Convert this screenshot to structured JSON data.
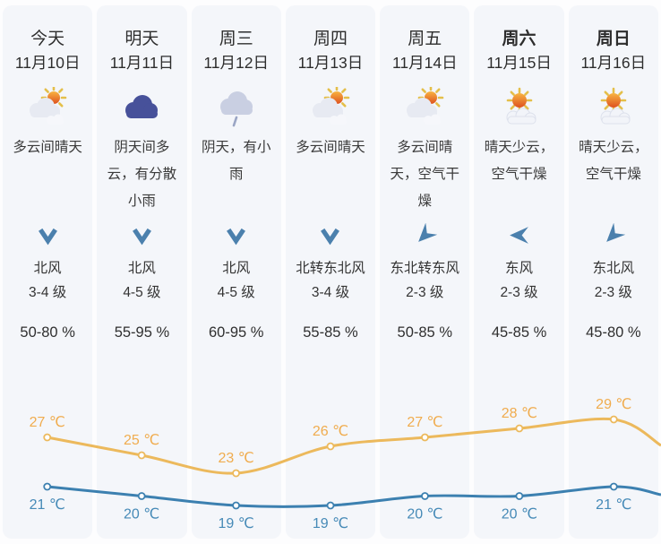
{
  "page": {
    "background_color": "#fdfdfe",
    "card_color": "#f4f6fa"
  },
  "columns": [
    {
      "day": "今天",
      "bold": false,
      "date": "11月10日",
      "icon": "sun-behind-clouds",
      "desc": "多云间晴天",
      "arrow": "down",
      "wind_dir": "北风",
      "wind_level": "3-4 级",
      "humidity": "50-80 %"
    },
    {
      "day": "明天",
      "bold": false,
      "date": "11月11日",
      "icon": "dark-cloud",
      "desc": "阴天间多云，有分散小雨",
      "arrow": "down",
      "wind_dir": "北风",
      "wind_level": "4-5 级",
      "humidity": "55-95 %"
    },
    {
      "day": "周三",
      "bold": false,
      "date": "11月12日",
      "icon": "cloud-rain",
      "desc": "阴天，有小雨",
      "arrow": "down",
      "wind_dir": "北风",
      "wind_level": "4-5 级",
      "humidity": "60-95 %"
    },
    {
      "day": "周四",
      "bold": false,
      "date": "11月13日",
      "icon": "sun-behind-clouds",
      "desc": "多云间晴天",
      "arrow": "down",
      "wind_dir": "北转东北风",
      "wind_level": "3-4 级",
      "humidity": "55-85 %"
    },
    {
      "day": "周五",
      "bold": false,
      "date": "11月14日",
      "icon": "sun-behind-clouds",
      "desc": "多云间晴天，空气干燥",
      "arrow": "down-left",
      "wind_dir": "东北转东风",
      "wind_level": "2-3 级",
      "humidity": "50-85 %"
    },
    {
      "day": "周六",
      "bold": true,
      "date": "11月15日",
      "icon": "sun-small-cloud",
      "desc": "晴天少云，空气干燥",
      "arrow": "left",
      "wind_dir": "东风",
      "wind_level": "2-3 级",
      "humidity": "45-85 %"
    },
    {
      "day": "周日",
      "bold": true,
      "date": "11月16日",
      "icon": "sun-small-cloud",
      "desc": "晴天少云，空气干燥",
      "arrow": "down-left",
      "wind_dir": "东北风",
      "wind_level": "2-3 级",
      "humidity": "45-80 %"
    }
  ],
  "chart_data": {
    "type": "line",
    "categories": [
      "今天",
      "明天",
      "周三",
      "周四",
      "周五",
      "周六",
      "周日"
    ],
    "series": [
      {
        "name": "high",
        "color": "#ecb95c",
        "label_color": "#f0ac4e",
        "values": [
          27,
          25,
          23,
          26,
          27,
          28,
          29
        ]
      },
      {
        "name": "low",
        "color": "#3c80b0",
        "label_color": "#468ab7",
        "values": [
          21,
          20,
          19,
          19,
          20,
          20,
          21
        ]
      }
    ],
    "unit": "℃",
    "grid": false,
    "legend": "none",
    "marker": "hollow-circle"
  },
  "wind_arrow_color": "#4b80ad"
}
